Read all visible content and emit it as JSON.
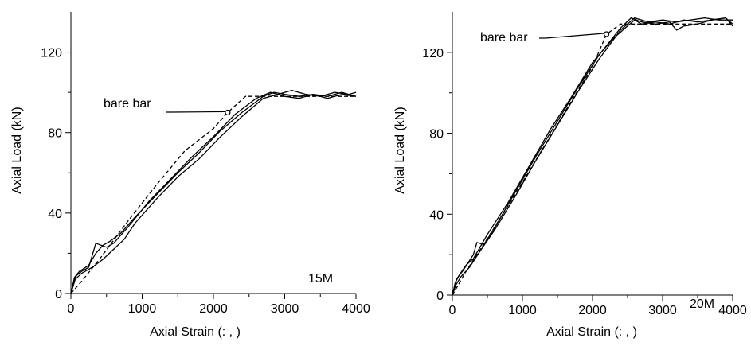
{
  "chart_data": [
    {
      "type": "line",
      "id": "left",
      "tag": "15M",
      "xlabel": "Axial Strain (: , )",
      "ylabel": "Axial Load (kN)",
      "xlim": [
        0,
        4000
      ],
      "ylim": [
        0,
        140
      ],
      "xticks": [
        0,
        1000,
        2000,
        3000,
        4000
      ],
      "xtick_labels": [
        "0",
        "1000",
        "2000",
        "3000",
        "4000"
      ],
      "yticks": [
        0,
        40,
        80,
        120
      ],
      "ytick_labels": [
        "0",
        "40",
        "80",
        "120"
      ],
      "annotation": {
        "text": "bare bar",
        "points_to": [
          2200,
          90
        ]
      },
      "series": [
        {
          "style": "dashed",
          "points": [
            [
              0,
              0
            ],
            [
              150,
              6
            ],
            [
              400,
              17
            ],
            [
              800,
              36
            ],
            [
              1200,
              54
            ],
            [
              1600,
              71
            ],
            [
              2000,
              82
            ],
            [
              2200,
              90
            ],
            [
              2450,
              98
            ],
            [
              2800,
              98
            ],
            [
              3200,
              98
            ],
            [
              3600,
              98
            ],
            [
              4000,
              98
            ]
          ]
        },
        {
          "style": "solid",
          "points": [
            [
              0,
              0
            ],
            [
              50,
              8
            ],
            [
              120,
              11
            ],
            [
              250,
              14
            ],
            [
              350,
              20
            ],
            [
              450,
              24
            ],
            [
              550,
              26
            ],
            [
              700,
              30
            ],
            [
              900,
              38
            ],
            [
              1200,
              49
            ],
            [
              1500,
              60
            ],
            [
              1800,
              70
            ],
            [
              2100,
              81
            ],
            [
              2400,
              90
            ],
            [
              2700,
              98
            ],
            [
              2850,
              100
            ],
            [
              3000,
              99
            ],
            [
              3200,
              98
            ],
            [
              3400,
              99
            ],
            [
              3600,
              98
            ],
            [
              3800,
              100
            ],
            [
              4000,
              98
            ]
          ]
        },
        {
          "style": "solid",
          "points": [
            [
              0,
              0
            ],
            [
              40,
              6
            ],
            [
              80,
              9
            ],
            [
              150,
              11
            ],
            [
              250,
              13
            ],
            [
              350,
              25
            ],
            [
              500,
              23
            ],
            [
              600,
              25
            ],
            [
              800,
              33
            ],
            [
              1100,
              46
            ],
            [
              1400,
              57
            ],
            [
              1700,
              68
            ],
            [
              2000,
              78
            ],
            [
              2300,
              89
            ],
            [
              2600,
              97
            ],
            [
              2800,
              100
            ],
            [
              3000,
              98
            ],
            [
              3200,
              97
            ],
            [
              3400,
              99
            ],
            [
              3600,
              97
            ],
            [
              3800,
              99
            ],
            [
              4000,
              98
            ]
          ]
        },
        {
          "style": "solid",
          "points": [
            [
              0,
              0
            ],
            [
              60,
              7
            ],
            [
              150,
              10
            ],
            [
              300,
              13
            ],
            [
              450,
              17
            ],
            [
              600,
              22
            ],
            [
              750,
              27
            ],
            [
              900,
              35
            ],
            [
              1200,
              47
            ],
            [
              1500,
              58
            ],
            [
              1800,
              67
            ],
            [
              2100,
              78
            ],
            [
              2400,
              88
            ],
            [
              2700,
              97
            ],
            [
              2900,
              99
            ],
            [
              3100,
              101
            ],
            [
              3300,
              99
            ],
            [
              3500,
              98
            ],
            [
              3700,
              100
            ],
            [
              3900,
              99
            ],
            [
              4000,
              100
            ]
          ]
        }
      ]
    },
    {
      "type": "line",
      "id": "right",
      "tag": "20M",
      "xlabel": "Axial Strain (: , )",
      "ylabel": "Axial Load (kN)",
      "xlim": [
        0,
        4000
      ],
      "ylim": [
        0,
        140
      ],
      "xticks": [
        0,
        1000,
        2000,
        3000,
        4000
      ],
      "xtick_labels": [
        "0",
        "1000",
        "2000",
        "3000",
        "4000"
      ],
      "yticks": [
        0,
        40,
        80,
        120
      ],
      "ytick_labels": [
        "0",
        "40",
        "80",
        "120"
      ],
      "annotation": {
        "text": "bare bar",
        "points_to": [
          2200,
          129
        ]
      },
      "series": [
        {
          "style": "dashed",
          "points": [
            [
              0,
              0
            ],
            [
              200,
              12
            ],
            [
              500,
              28
            ],
            [
              900,
              50
            ],
            [
              1300,
              73
            ],
            [
              1700,
              96
            ],
            [
              2000,
              113
            ],
            [
              2200,
              129
            ],
            [
              2400,
              134
            ],
            [
              2800,
              134
            ],
            [
              3200,
              134
            ],
            [
              3600,
              134
            ],
            [
              4000,
              134
            ]
          ]
        },
        {
          "style": "solid",
          "points": [
            [
              0,
              0
            ],
            [
              40,
              6
            ],
            [
              100,
              10
            ],
            [
              200,
              15
            ],
            [
              300,
              18
            ],
            [
              400,
              24
            ],
            [
              500,
              30
            ],
            [
              800,
              46
            ],
            [
              1100,
              64
            ],
            [
              1400,
              82
            ],
            [
              1700,
              98
            ],
            [
              2000,
              115
            ],
            [
              2300,
              127
            ],
            [
              2500,
              133
            ],
            [
              2600,
              136
            ],
            [
              2700,
              134
            ],
            [
              2900,
              135
            ],
            [
              3100,
              134
            ],
            [
              3300,
              136
            ],
            [
              3500,
              135
            ],
            [
              3700,
              136
            ],
            [
              3900,
              137
            ],
            [
              4000,
              134
            ]
          ]
        },
        {
          "style": "solid",
          "points": [
            [
              0,
              0
            ],
            [
              60,
              8
            ],
            [
              150,
              12
            ],
            [
              300,
              20
            ],
            [
              350,
              26
            ],
            [
              450,
              25
            ],
            [
              600,
              33
            ],
            [
              900,
              51
            ],
            [
              1200,
              69
            ],
            [
              1500,
              86
            ],
            [
              1800,
              103
            ],
            [
              2100,
              119
            ],
            [
              2400,
              132
            ],
            [
              2550,
              137
            ],
            [
              2700,
              135
            ],
            [
              2900,
              134
            ],
            [
              3100,
              135
            ],
            [
              3200,
              131
            ],
            [
              3300,
              133
            ],
            [
              3500,
              134
            ],
            [
              3700,
              136
            ],
            [
              3900,
              137
            ],
            [
              4000,
              133
            ]
          ]
        },
        {
          "style": "solid",
          "points": [
            [
              0,
              0
            ],
            [
              50,
              5
            ],
            [
              120,
              9
            ],
            [
              250,
              14
            ],
            [
              400,
              22
            ],
            [
              600,
              32
            ],
            [
              900,
              49
            ],
            [
              1200,
              67
            ],
            [
              1500,
              84
            ],
            [
              1800,
              101
            ],
            [
              2100,
              117
            ],
            [
              2400,
              131
            ],
            [
              2600,
              137
            ],
            [
              2800,
              135
            ],
            [
              3000,
              136
            ],
            [
              3200,
              135
            ],
            [
              3400,
              136
            ],
            [
              3600,
              137
            ],
            [
              3800,
              136
            ],
            [
              4000,
              136
            ]
          ]
        }
      ]
    }
  ]
}
